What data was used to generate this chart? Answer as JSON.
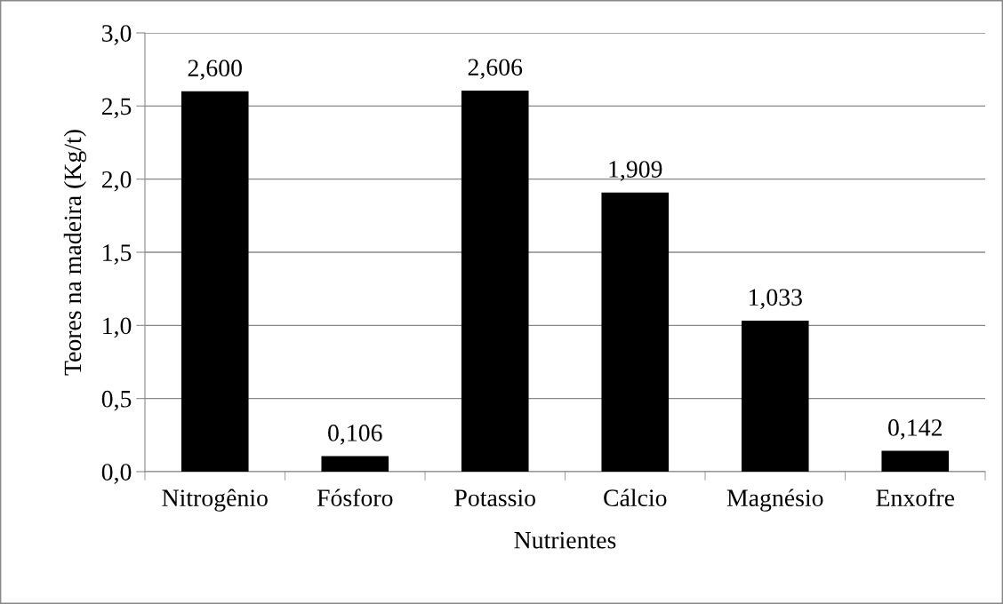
{
  "chart_data": {
    "type": "bar",
    "xlabel": "Nutrientes",
    "ylabel": "Teores na madeira (Kg/t)",
    "categories": [
      "Nitrogênio",
      "Fósforo",
      "Potassio",
      "Cálcio",
      "Magnésio",
      "Enxofre"
    ],
    "values": [
      2.6,
      0.106,
      2.606,
      1.909,
      1.033,
      0.142
    ],
    "value_labels": [
      "2,600",
      "0,106",
      "2,606",
      "1,909",
      "1,033",
      "0,142"
    ],
    "color": "#000000",
    "ylim": [
      0,
      3
    ],
    "yticks": [
      {
        "value": 0,
        "label": "0,0"
      },
      {
        "value": 0.5,
        "label": "0,5"
      },
      {
        "value": 1,
        "label": "1,0"
      },
      {
        "value": 1.5,
        "label": "1,5"
      },
      {
        "value": 2,
        "label": "2,0"
      },
      {
        "value": 2.5,
        "label": "2,5"
      },
      {
        "value": 3,
        "label": "3,0"
      }
    ],
    "grid": "y",
    "legend": false
  }
}
